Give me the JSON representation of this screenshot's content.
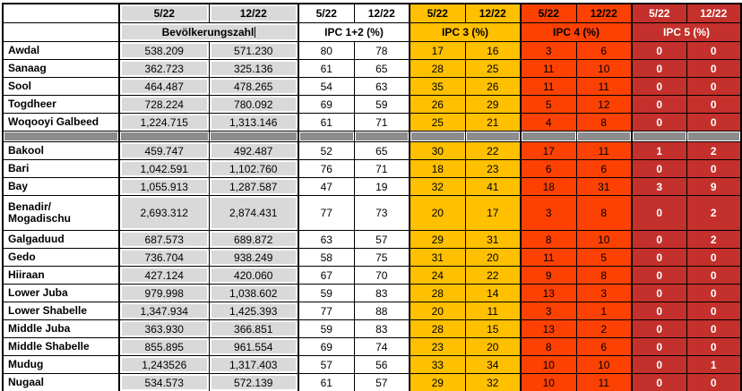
{
  "colors": {
    "ipc3_yellow": "#FFC000",
    "ipc4_orange": "#FC4103",
    "ipc5_red": "#C4302B",
    "population_fill": "#D9D9D9",
    "separator_gray": "#8C8C8C"
  },
  "table": {
    "period_columns": [
      "5/22",
      "12/22"
    ],
    "groups": [
      {
        "id": "pop",
        "label": "Bevölkerungszahl"
      },
      {
        "id": "ipc12",
        "label": "IPC 1+2 (%)"
      },
      {
        "id": "ipc3",
        "label": "IPC 3 (%)"
      },
      {
        "id": "ipc4",
        "label": "IPC 4 (%)"
      },
      {
        "id": "ipc5",
        "label": "IPC 5 (%)"
      }
    ],
    "sections": [
      {
        "rows": [
          {
            "region": "Awdal",
            "values": {
              "pop": [
                "538.209",
                "571.230"
              ],
              "ipc12": [
                "80",
                "78"
              ],
              "ipc3": [
                "17",
                "16"
              ],
              "ipc4": [
                "3",
                "6"
              ],
              "ipc5": [
                "0",
                "0"
              ]
            }
          },
          {
            "region": "Sanaag",
            "values": {
              "pop": [
                "362.723",
                "325.136"
              ],
              "ipc12": [
                "61",
                "65"
              ],
              "ipc3": [
                "28",
                "25"
              ],
              "ipc4": [
                "11",
                "10"
              ],
              "ipc5": [
                "0",
                "0"
              ]
            }
          },
          {
            "region": "Sool",
            "values": {
              "pop": [
                "464.487",
                "478.265"
              ],
              "ipc12": [
                "54",
                "63"
              ],
              "ipc3": [
                "35",
                "26"
              ],
              "ipc4": [
                "11",
                "11"
              ],
              "ipc5": [
                "0",
                "0"
              ]
            }
          },
          {
            "region": "Togdheer",
            "values": {
              "pop": [
                "728.224",
                "780.092"
              ],
              "ipc12": [
                "69",
                "59"
              ],
              "ipc3": [
                "26",
                "29"
              ],
              "ipc4": [
                "5",
                "12"
              ],
              "ipc5": [
                "0",
                "0"
              ]
            }
          },
          {
            "region": "Woqooyi Galbeed",
            "values": {
              "pop": [
                "1,224.715",
                "1,313.146"
              ],
              "ipc12": [
                "61",
                "71"
              ],
              "ipc3": [
                "25",
                "21"
              ],
              "ipc4": [
                "4",
                "8"
              ],
              "ipc5": [
                "0",
                "0"
              ]
            }
          }
        ]
      },
      {
        "rows": [
          {
            "region": "Bakool",
            "values": {
              "pop": [
                "459.747",
                "492.487"
              ],
              "ipc12": [
                "52",
                "65"
              ],
              "ipc3": [
                "30",
                "22"
              ],
              "ipc4": [
                "17",
                "11"
              ],
              "ipc5": [
                "1",
                "2"
              ]
            }
          },
          {
            "region": "Bari",
            "values": {
              "pop": [
                "1,042.591",
                "1,102.760"
              ],
              "ipc12": [
                "76",
                "71"
              ],
              "ipc3": [
                "18",
                "23"
              ],
              "ipc4": [
                "6",
                "6"
              ],
              "ipc5": [
                "0",
                "0"
              ]
            }
          },
          {
            "region": "Bay",
            "values": {
              "pop": [
                "1,055.913",
                "1,287.587"
              ],
              "ipc12": [
                "47",
                "19"
              ],
              "ipc3": [
                "32",
                "41"
              ],
              "ipc4": [
                "18",
                "31"
              ],
              "ipc5": [
                "3",
                "9"
              ]
            }
          },
          {
            "region": "Benadir/\nMogadischu",
            "values": {
              "pop": [
                "2,693.312",
                "2,874.431"
              ],
              "ipc12": [
                "77",
                "73"
              ],
              "ipc3": [
                "20",
                "17"
              ],
              "ipc4": [
                "3",
                "8"
              ],
              "ipc5": [
                "0",
                "2"
              ]
            }
          },
          {
            "region": "Galgaduud",
            "values": {
              "pop": [
                "687.573",
                "689.872"
              ],
              "ipc12": [
                "63",
                "57"
              ],
              "ipc3": [
                "29",
                "31"
              ],
              "ipc4": [
                "8",
                "10"
              ],
              "ipc5": [
                "0",
                "2"
              ]
            }
          },
          {
            "region": "Gedo",
            "values": {
              "pop": [
                "736.704",
                "938.249"
              ],
              "ipc12": [
                "58",
                "75"
              ],
              "ipc3": [
                "31",
                "20"
              ],
              "ipc4": [
                "11",
                "5"
              ],
              "ipc5": [
                "0",
                "0"
              ]
            }
          },
          {
            "region": "Hiiraan",
            "values": {
              "pop": [
                "427.124",
                "420.060"
              ],
              "ipc12": [
                "67",
                "70"
              ],
              "ipc3": [
                "24",
                "22"
              ],
              "ipc4": [
                "9",
                "8"
              ],
              "ipc5": [
                "0",
                "0"
              ]
            }
          },
          {
            "region": "Lower Juba",
            "values": {
              "pop": [
                "979.998",
                "1,038.602"
              ],
              "ipc12": [
                "59",
                "83"
              ],
              "ipc3": [
                "28",
                "14"
              ],
              "ipc4": [
                "13",
                "3"
              ],
              "ipc5": [
                "0",
                "0"
              ]
            }
          },
          {
            "region": "Lower Shabelle",
            "values": {
              "pop": [
                "1,347.934",
                "1,425.393"
              ],
              "ipc12": [
                "77",
                "88"
              ],
              "ipc3": [
                "20",
                "11"
              ],
              "ipc4": [
                "3",
                "1"
              ],
              "ipc5": [
                "0",
                "0"
              ]
            }
          },
          {
            "region": "Middle Juba",
            "values": {
              "pop": [
                "363.930",
                "366.851"
              ],
              "ipc12": [
                "59",
                "83"
              ],
              "ipc3": [
                "28",
                "15"
              ],
              "ipc4": [
                "13",
                "2"
              ],
              "ipc5": [
                "0",
                "0"
              ]
            }
          },
          {
            "region": "Middle Shabelle",
            "values": {
              "pop": [
                "855.895",
                "961.554"
              ],
              "ipc12": [
                "69",
                "74"
              ],
              "ipc3": [
                "23",
                "20"
              ],
              "ipc4": [
                "8",
                "6"
              ],
              "ipc5": [
                "0",
                "0"
              ]
            }
          },
          {
            "region": "Mudug",
            "values": {
              "pop": [
                "1,243526",
                "1,317.403"
              ],
              "ipc12": [
                "57",
                "56"
              ],
              "ipc3": [
                "33",
                "34"
              ],
              "ipc4": [
                "10",
                "10"
              ],
              "ipc5": [
                "0",
                "1"
              ]
            }
          },
          {
            "region": "Nugaal",
            "values": {
              "pop": [
                "534.573",
                "572.139"
              ],
              "ipc12": [
                "61",
                "57"
              ],
              "ipc3": [
                "29",
                "32"
              ],
              "ipc4": [
                "10",
                "11"
              ],
              "ipc5": [
                "0",
                "0"
              ]
            }
          }
        ]
      }
    ]
  }
}
